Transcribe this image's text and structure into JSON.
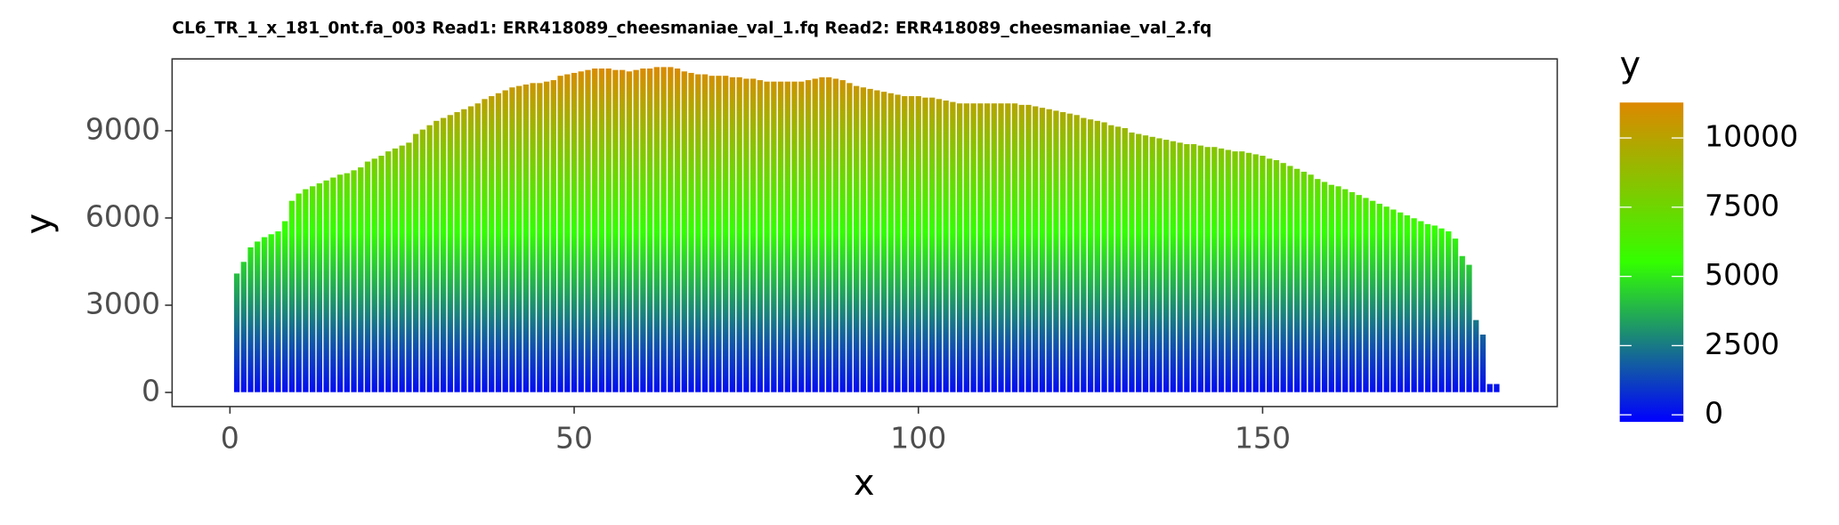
{
  "chart_data": {
    "type": "bar",
    "title": "CL6_TR_1_x_181_0nt.fa_003 Read1: ERR418089_cheesmaniae_val_1.fq Read2: ERR418089_cheesmaniae_val_2.fq",
    "x_label": "x",
    "y_label": "y",
    "legend_title": "y",
    "x": [
      1,
      2,
      3,
      4,
      5,
      6,
      7,
      8,
      9,
      10,
      11,
      12,
      13,
      14,
      15,
      16,
      17,
      18,
      19,
      20,
      21,
      22,
      23,
      24,
      25,
      26,
      27,
      28,
      29,
      30,
      31,
      32,
      33,
      34,
      35,
      36,
      37,
      38,
      39,
      40,
      41,
      42,
      43,
      44,
      45,
      46,
      47,
      48,
      49,
      50,
      51,
      52,
      53,
      54,
      55,
      56,
      57,
      58,
      59,
      60,
      61,
      62,
      63,
      64,
      65,
      66,
      67,
      68,
      69,
      70,
      71,
      72,
      73,
      74,
      75,
      76,
      77,
      78,
      79,
      80,
      81,
      82,
      83,
      84,
      85,
      86,
      87,
      88,
      89,
      90,
      91,
      92,
      93,
      94,
      95,
      96,
      97,
      98,
      99,
      100,
      101,
      102,
      103,
      104,
      105,
      106,
      107,
      108,
      109,
      110,
      111,
      112,
      113,
      114,
      115,
      116,
      117,
      118,
      119,
      120,
      121,
      122,
      123,
      124,
      125,
      126,
      127,
      128,
      129,
      130,
      131,
      132,
      133,
      134,
      135,
      136,
      137,
      138,
      139,
      140,
      141,
      142,
      143,
      144,
      145,
      146,
      147,
      148,
      149,
      150,
      151,
      152,
      153,
      154,
      155,
      156,
      157,
      158,
      159,
      160,
      161,
      162,
      163,
      164,
      165,
      166,
      167,
      168,
      169,
      170,
      171,
      172,
      173,
      174,
      175,
      176,
      177,
      178,
      179,
      180,
      181,
      182,
      183,
      184
    ],
    "values": [
      4100,
      4500,
      5000,
      5200,
      5350,
      5450,
      5550,
      5900,
      6600,
      6850,
      7000,
      7100,
      7200,
      7300,
      7400,
      7500,
      7550,
      7650,
      7750,
      7950,
      8050,
      8150,
      8300,
      8400,
      8500,
      8600,
      8900,
      9050,
      9200,
      9350,
      9450,
      9550,
      9650,
      9750,
      9850,
      9950,
      10100,
      10200,
      10300,
      10400,
      10500,
      10550,
      10600,
      10650,
      10650,
      10700,
      10750,
      10900,
      10950,
      11000,
      11050,
      11100,
      11150,
      11150,
      11150,
      11100,
      11100,
      11050,
      11100,
      11150,
      11150,
      11200,
      11200,
      11200,
      11150,
      11050,
      11000,
      10950,
      10950,
      10900,
      10900,
      10900,
      10850,
      10850,
      10800,
      10800,
      10750,
      10700,
      10700,
      10700,
      10700,
      10700,
      10700,
      10750,
      10800,
      10850,
      10850,
      10800,
      10750,
      10650,
      10550,
      10500,
      10450,
      10400,
      10350,
      10300,
      10250,
      10200,
      10200,
      10200,
      10150,
      10150,
      10100,
      10050,
      10000,
      9950,
      9950,
      9950,
      9950,
      9950,
      9950,
      9950,
      9950,
      9950,
      9900,
      9900,
      9850,
      9800,
      9750,
      9700,
      9650,
      9600,
      9550,
      9450,
      9400,
      9350,
      9300,
      9200,
      9150,
      9100,
      8950,
      8900,
      8850,
      8800,
      8750,
      8700,
      8650,
      8600,
      8550,
      8550,
      8500,
      8450,
      8450,
      8400,
      8350,
      8300,
      8300,
      8250,
      8200,
      8150,
      8050,
      8000,
      7900,
      7800,
      7700,
      7600,
      7500,
      7350,
      7250,
      7150,
      7100,
      7000,
      6900,
      6800,
      6700,
      6600,
      6500,
      6400,
      6300,
      6200,
      6100,
      6000,
      5900,
      5800,
      5750,
      5650,
      5550,
      5300,
      4700,
      4400,
      2500,
      2000,
      300,
      300
    ],
    "xlim": [
      -8.4,
      192.8
    ],
    "ylim": [
      -486,
      11470
    ],
    "xticks": [
      0,
      50,
      100,
      150
    ],
    "yticks": [
      0,
      3000,
      6000,
      9000
    ],
    "colors": [
      "#0000ff",
      "#33ff00",
      "#dd8800"
    ],
    "clim": [
      -255,
      11280
    ],
    "cticks": [
      0,
      2500,
      5000,
      7500,
      10000
    ]
  }
}
